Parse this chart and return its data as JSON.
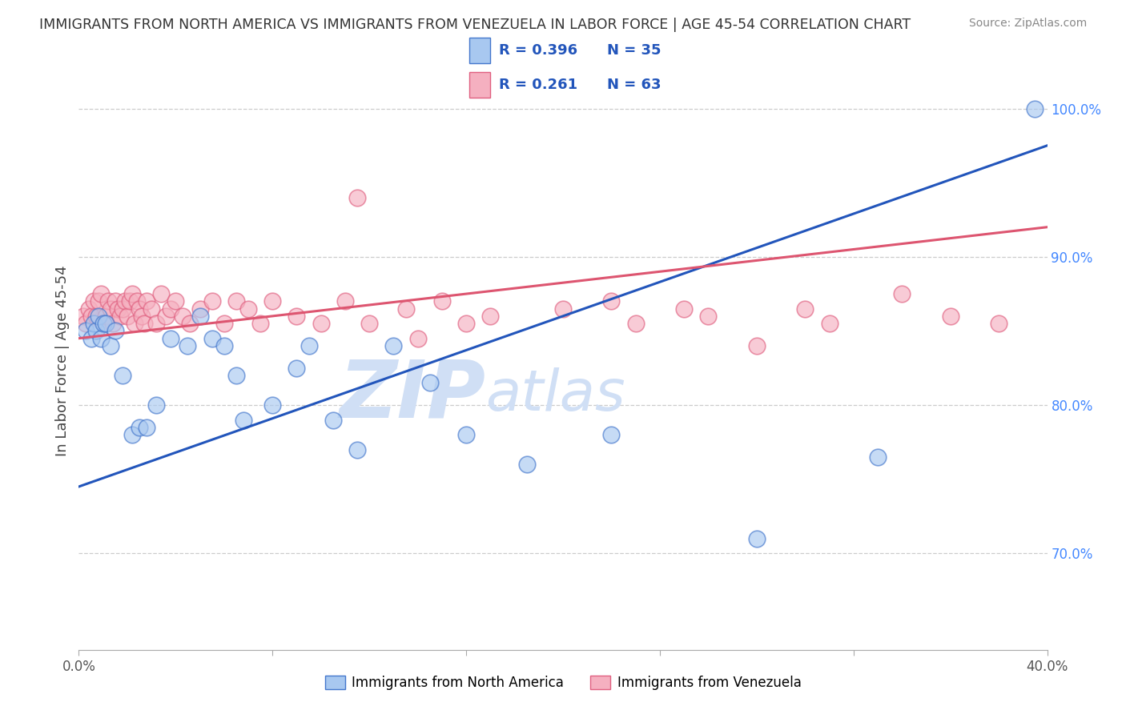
{
  "title": "IMMIGRANTS FROM NORTH AMERICA VS IMMIGRANTS FROM VENEZUELA IN LABOR FORCE | AGE 45-54 CORRELATION CHART",
  "source": "Source: ZipAtlas.com",
  "ylabel": "In Labor Force | Age 45-54",
  "blue_color": "#A8C8F0",
  "pink_color": "#F5B0C0",
  "blue_edge_color": "#4477CC",
  "pink_edge_color": "#E06080",
  "blue_line_color": "#2255BB",
  "pink_line_color": "#DD5570",
  "watermark_color": "#D0DFF5",
  "title_color": "#333333",
  "right_axis_color": "#4488FF",
  "legend_r_color": "#2255BB",
  "legend_n_color": "#2255BB",
  "xlim": [
    0.0,
    0.4
  ],
  "ylim": [
    0.635,
    1.025
  ],
  "ytick_vals": [
    0.7,
    0.8,
    0.9,
    1.0
  ],
  "ytick_labels": [
    "70.0%",
    "80.0%",
    "90.0%",
    "100.0%"
  ],
  "blue_trend_x0": 0.0,
  "blue_trend_x1": 0.4,
  "blue_trend_y0": 0.745,
  "blue_trend_y1": 0.975,
  "pink_trend_x0": 0.0,
  "pink_trend_x1": 0.4,
  "pink_trend_y0": 0.845,
  "pink_trend_y1": 0.92,
  "blue_scatter_x": [
    0.003,
    0.005,
    0.006,
    0.007,
    0.008,
    0.009,
    0.01,
    0.011,
    0.013,
    0.015,
    0.018,
    0.022,
    0.025,
    0.028,
    0.032,
    0.038,
    0.045,
    0.05,
    0.055,
    0.06,
    0.065,
    0.068,
    0.08,
    0.09,
    0.095,
    0.105,
    0.115,
    0.13,
    0.145,
    0.16,
    0.185,
    0.22,
    0.28,
    0.33,
    0.395
  ],
  "blue_scatter_y": [
    0.85,
    0.845,
    0.855,
    0.85,
    0.86,
    0.845,
    0.855,
    0.855,
    0.84,
    0.85,
    0.82,
    0.78,
    0.785,
    0.785,
    0.8,
    0.845,
    0.84,
    0.86,
    0.845,
    0.84,
    0.82,
    0.79,
    0.8,
    0.825,
    0.84,
    0.79,
    0.77,
    0.84,
    0.815,
    0.78,
    0.76,
    0.78,
    0.71,
    0.765,
    1.0
  ],
  "pink_scatter_x": [
    0.002,
    0.003,
    0.004,
    0.005,
    0.006,
    0.007,
    0.008,
    0.009,
    0.01,
    0.011,
    0.012,
    0.013,
    0.014,
    0.015,
    0.016,
    0.017,
    0.018,
    0.019,
    0.02,
    0.021,
    0.022,
    0.023,
    0.024,
    0.025,
    0.026,
    0.027,
    0.028,
    0.03,
    0.032,
    0.034,
    0.036,
    0.038,
    0.04,
    0.043,
    0.046,
    0.05,
    0.055,
    0.06,
    0.065,
    0.07,
    0.075,
    0.08,
    0.09,
    0.1,
    0.11,
    0.12,
    0.135,
    0.15,
    0.17,
    0.2,
    0.23,
    0.26,
    0.3,
    0.34,
    0.36,
    0.38,
    0.115,
    0.14,
    0.16,
    0.22,
    0.25,
    0.28,
    0.31
  ],
  "pink_scatter_y": [
    0.86,
    0.855,
    0.865,
    0.86,
    0.87,
    0.86,
    0.87,
    0.875,
    0.855,
    0.86,
    0.87,
    0.865,
    0.855,
    0.87,
    0.865,
    0.86,
    0.865,
    0.87,
    0.86,
    0.87,
    0.875,
    0.855,
    0.87,
    0.865,
    0.86,
    0.855,
    0.87,
    0.865,
    0.855,
    0.875,
    0.86,
    0.865,
    0.87,
    0.86,
    0.855,
    0.865,
    0.87,
    0.855,
    0.87,
    0.865,
    0.855,
    0.87,
    0.86,
    0.855,
    0.87,
    0.855,
    0.865,
    0.87,
    0.86,
    0.865,
    0.855,
    0.86,
    0.865,
    0.875,
    0.86,
    0.855,
    0.94,
    0.845,
    0.855,
    0.87,
    0.865,
    0.84,
    0.855
  ],
  "legend_blue_r": "R = 0.396",
  "legend_blue_n": "N = 35",
  "legend_pink_r": "R = 0.261",
  "legend_pink_n": "N = 63",
  "bottom_legend_blue": "Immigrants from North America",
  "bottom_legend_pink": "Immigrants from Venezuela"
}
